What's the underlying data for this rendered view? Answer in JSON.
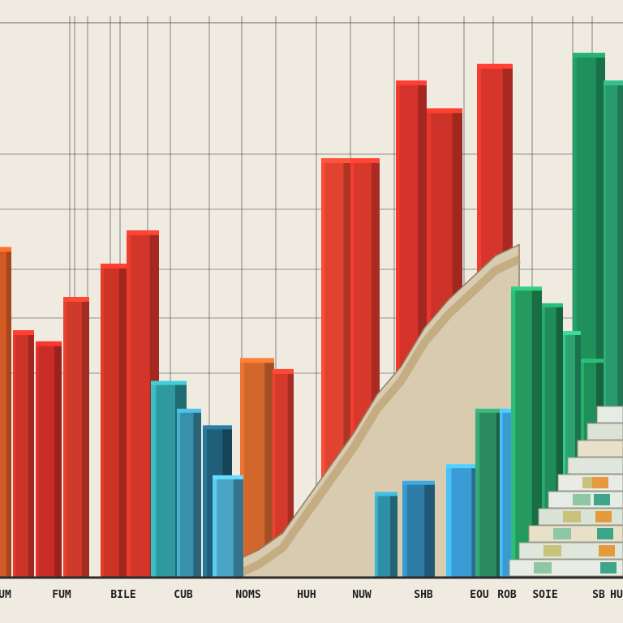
{
  "chart_data": {
    "type": "bar",
    "title": "",
    "xlabel": "",
    "ylabel": "",
    "grid": true,
    "legend": "none",
    "tick_labels": [
      "UM",
      "FUM",
      "BILE",
      "CUB",
      "NOMS",
      "HUH",
      "NUW",
      "SHB",
      "EOU",
      "ROB",
      "SOIE",
      "SB",
      "HU"
    ],
    "bars_background": [
      {
        "color": "#d35a24",
        "value": 0.59
      },
      {
        "color": "#ce3327",
        "value": 0.44
      },
      {
        "color": "#c92c26",
        "value": 0.42
      },
      {
        "color": "#d03a2a",
        "value": 0.5
      },
      {
        "color": "#cd3226",
        "value": 0.56
      },
      {
        "color": "#d2362a",
        "value": 0.62
      },
      {
        "color": "#d2672e",
        "value": 0.39
      },
      {
        "color": "#d43a2c",
        "value": 0.37
      },
      {
        "color": "#e0432f",
        "value": 0.75
      },
      {
        "color": "#d7382b",
        "value": 0.75
      },
      {
        "color": "#d4322a",
        "value": 0.89
      },
      {
        "color": "#cc3227",
        "value": 0.84
      },
      {
        "color": "#d6352b",
        "value": 0.92
      },
      {
        "color": "#1f8f5c",
        "value": 0.94
      },
      {
        "color": "#2a9a6d",
        "value": 0.89
      }
    ],
    "bars_blue": [
      {
        "color": "#2e9aa0",
        "value": 0.35
      },
      {
        "color": "#3a8fab",
        "value": 0.3
      },
      {
        "color": "#1f5f7a",
        "value": 0.27
      },
      {
        "color": "#4aa4c4",
        "value": 0.18
      },
      {
        "color": "#2f8fa8",
        "value": 0.15
      },
      {
        "color": "#2f7da7",
        "value": 0.17
      },
      {
        "color": "#3b9bd4",
        "value": 0.2
      },
      {
        "color": "#2b8a5e",
        "value": 0.3
      },
      {
        "color": "#3a9bd0",
        "value": 0.3
      },
      {
        "color": "#249a5f",
        "value": 0.52
      },
      {
        "color": "#1f8c5a",
        "value": 0.49
      },
      {
        "color": "#2aa36f",
        "value": 0.44
      },
      {
        "color": "#1f8e58",
        "value": 0.39
      }
    ],
    "trend_area": {
      "color": "#d9cbb0",
      "values": [
        0.03,
        0.05,
        0.08,
        0.14,
        0.2,
        0.26,
        0.33,
        0.38,
        0.45,
        0.5,
        0.54,
        0.58,
        0.6
      ]
    },
    "steps": {
      "color": "#e9ece4",
      "count": 10
    }
  }
}
